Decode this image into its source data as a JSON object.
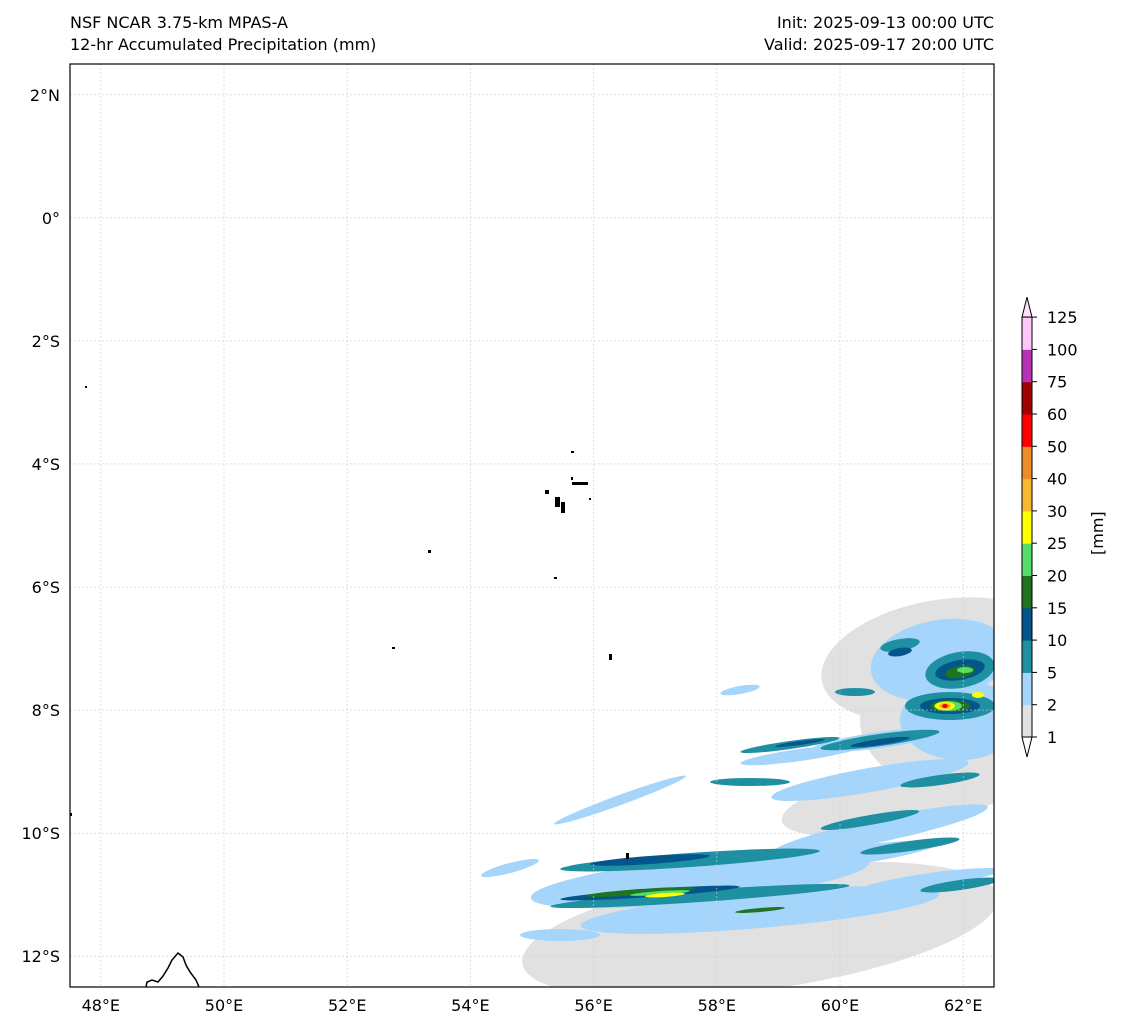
{
  "header": {
    "model": "NSF NCAR 3.75-km MPAS-A",
    "field": "12-hr Accumulated Precipitation (mm)",
    "init": "Init: 2025-09-13 00:00 UTC",
    "valid": "Valid: 2025-09-17 20:00 UTC"
  },
  "map": {
    "lon_range": [
      47.5,
      62.5
    ],
    "lat_range": [
      -12.5,
      2.5
    ],
    "lon_ticks": [
      {
        "v": 48,
        "label": "48°E"
      },
      {
        "v": 50,
        "label": "50°E"
      },
      {
        "v": 52,
        "label": "52°E"
      },
      {
        "v": 54,
        "label": "54°E"
      },
      {
        "v": 56,
        "label": "56°E"
      },
      {
        "v": 58,
        "label": "58°E"
      },
      {
        "v": 60,
        "label": "60°E"
      },
      {
        "v": 62,
        "label": "62°E"
      }
    ],
    "lat_ticks": [
      {
        "v": 2,
        "label": "2°N"
      },
      {
        "v": 0,
        "label": "0°"
      },
      {
        "v": -2,
        "label": "2°S"
      },
      {
        "v": -4,
        "label": "4°S"
      },
      {
        "v": -6,
        "label": "6°S"
      },
      {
        "v": -8,
        "label": "8°S"
      },
      {
        "v": -10,
        "label": "10°S"
      },
      {
        "v": -12,
        "label": "12°S"
      }
    ]
  },
  "colorbar": {
    "unit_label": "[mm]",
    "levels": [
      "1",
      "2",
      "5",
      "10",
      "15",
      "20",
      "25",
      "30",
      "40",
      "50",
      "60",
      "75",
      "100",
      "125"
    ],
    "colors": [
      "#e1e1e1",
      "#a5d5fa",
      "#1e90a2",
      "#03558c",
      "#1f7322",
      "#55dc6a",
      "#ffff00",
      "#f9b830",
      "#ef8c2a",
      "#ff0000",
      "#a00000",
      "#b832b8",
      "#ffc8f8"
    ],
    "under_color": "#ffffff",
    "over_color": "#ffe0fb"
  }
}
